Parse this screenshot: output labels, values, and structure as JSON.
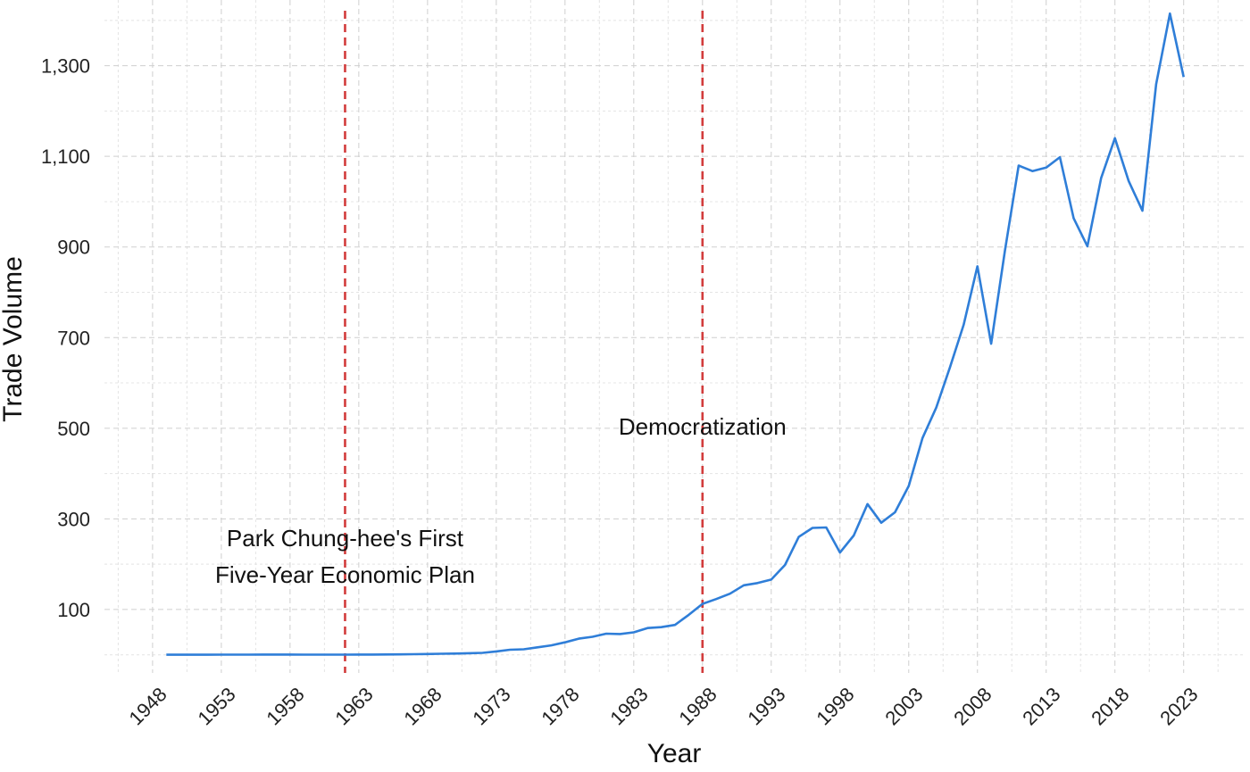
{
  "chart_data": {
    "type": "line",
    "xlabel": "Year",
    "ylabel": "Trade Volume",
    "xlim": [
      1944.5,
      2027.5
    ],
    "ylim": [
      -40,
      1445
    ],
    "x_ticks": [
      1948,
      1953,
      1958,
      1963,
      1968,
      1973,
      1978,
      1983,
      1988,
      1993,
      1998,
      2003,
      2008,
      2013,
      2018,
      2023
    ],
    "y_ticks": [
      100,
      300,
      500,
      700,
      900,
      1100,
      1300
    ],
    "y_tick_labels": [
      "100",
      "300",
      "500",
      "700",
      "900",
      "1,100",
      "1,300"
    ],
    "grid": true,
    "line_color": "#2f7ed8",
    "vline_color": "#d23c3c",
    "series": [
      {
        "x": [
          1949,
          1950,
          1951,
          1952,
          1953,
          1954,
          1955,
          1956,
          1957,
          1958,
          1959,
          1960,
          1961,
          1962,
          1963,
          1964,
          1965,
          1966,
          1967,
          1968,
          1969,
          1970,
          1971,
          1972,
          1973,
          1974,
          1975,
          1976,
          1977,
          1978,
          1979,
          1980,
          1981,
          1982,
          1983,
          1984,
          1985,
          1986,
          1987,
          1988,
          1989,
          1990,
          1991,
          1992,
          1993,
          1994,
          1995,
          1996,
          1997,
          1998,
          1999,
          2000,
          2001,
          2002,
          2003,
          2004,
          2005,
          2006,
          2007,
          2008,
          2009,
          2010,
          2011,
          2012,
          2013,
          2014,
          2015,
          2016,
          2017,
          2018,
          2019,
          2020,
          2021,
          2022,
          2023
        ],
        "y": [
          0.2,
          0.1,
          0.2,
          0.2,
          0.4,
          0.3,
          0.4,
          0.5,
          0.5,
          0.5,
          0.3,
          0.3,
          0.3,
          0.4,
          0.5,
          0.5,
          0.7,
          1.0,
          1.4,
          1.8,
          2.3,
          2.8,
          3.5,
          4.3,
          7.5,
          11.3,
          12.1,
          16.5,
          20.8,
          27.5,
          35.6,
          39.8,
          46.6,
          45.8,
          49.6,
          59.0,
          61.1,
          66.0,
          88.3,
          112.5,
          123.0,
          134.9,
          153.4,
          158.4,
          166.0,
          198.4,
          260.2,
          280.0,
          281.0,
          225.6,
          263.4,
          332.7,
          291.5,
          314.6,
          372.6,
          478.3,
          545.6,
          634.8,
          728.3,
          857.3,
          686.6,
          891.6,
          1079.6,
          1067.5,
          1075.2,
          1098.2,
          963.3,
          901.6,
          1052.2,
          1140.1,
          1045.6,
          980.1,
          1259.5,
          1415.0,
          1275.0
        ]
      }
    ],
    "events": [
      {
        "year": 1962,
        "label_lines": [
          "Park Chung-hee's First",
          "Five-Year Economic Plan"
        ]
      },
      {
        "year": 1988,
        "label_lines": [
          "Democratization"
        ]
      }
    ]
  }
}
